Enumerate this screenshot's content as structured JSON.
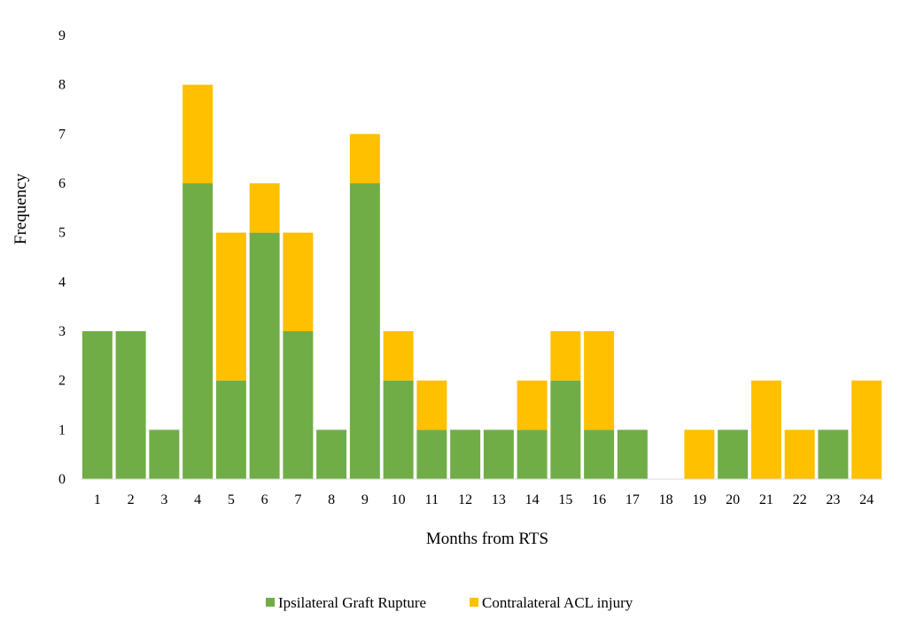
{
  "chart_data": {
    "type": "bar",
    "stacked": true,
    "title": "",
    "xlabel": "Months from RTS",
    "ylabel": "Frequency",
    "ylim": [
      0,
      9
    ],
    "yticks": [
      "0",
      "1",
      "2",
      "3",
      "4",
      "5",
      "6",
      "7",
      "8",
      "9"
    ],
    "categories": [
      "1",
      "2",
      "3",
      "4",
      "5",
      "6",
      "7",
      "8",
      "9",
      "10",
      "11",
      "12",
      "13",
      "14",
      "15",
      "16",
      "17",
      "18",
      "19",
      "20",
      "21",
      "22",
      "23",
      "24"
    ],
    "series": [
      {
        "name": "Ipsilateral Graft Rupture",
        "color": "#70AD47",
        "values": [
          3,
          3,
          1,
          6,
          2,
          5,
          3,
          1,
          6,
          2,
          1,
          1,
          1,
          1,
          2,
          1,
          1,
          0,
          0,
          1,
          0,
          0,
          1,
          0
        ]
      },
      {
        "name": "Contralateral ACL injury",
        "color": "#FFC000",
        "values": [
          0,
          0,
          0,
          2,
          3,
          1,
          2,
          0,
          1,
          1,
          1,
          0,
          0,
          1,
          1,
          2,
          0,
          0,
          1,
          0,
          2,
          1,
          0,
          2
        ]
      }
    ],
    "legend_position": "bottom-center",
    "grid": false
  }
}
